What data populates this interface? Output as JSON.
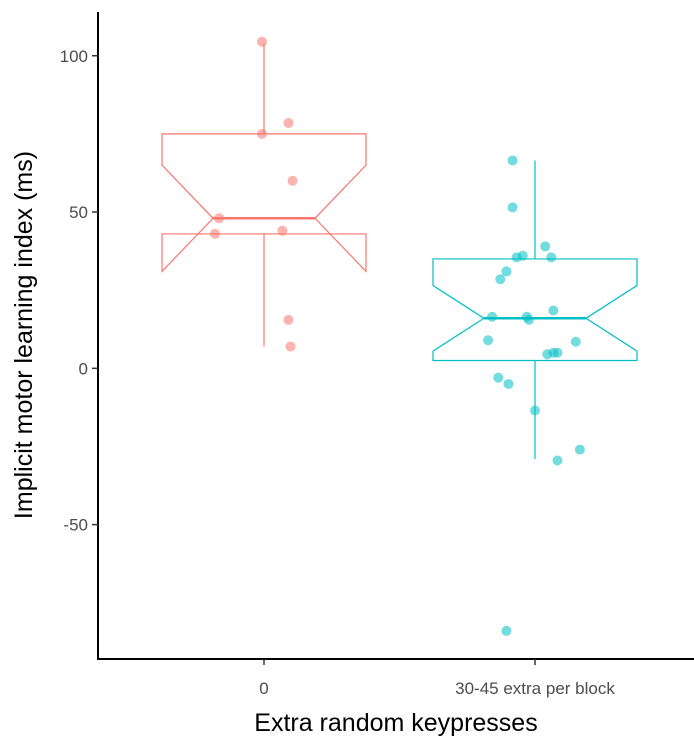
{
  "chart_data": {
    "type": "boxplot",
    "xlabel": "Extra random keypresses",
    "ylabel": "Implicit motor learning index (ms)",
    "ylim": [
      -93,
      114
    ],
    "y_ticks": [
      100,
      50,
      0,
      -50
    ],
    "y_tick_labels": [
      "100",
      "50",
      "0",
      "-50"
    ],
    "grid": false,
    "legend": "none",
    "notched": true,
    "categories": [
      "0",
      "30-45 extra per block"
    ],
    "groups": [
      {
        "category": "0",
        "color": "#F8766D",
        "whisker_low": 7,
        "q1": 43,
        "median": 48,
        "q3": 75,
        "whisker_high": 104,
        "notch_low": 31,
        "notch_high": 65,
        "points": [
          {
            "jitter": -0.01,
            "y": 104.5
          },
          {
            "jitter": -0.01,
            "y": 75
          },
          {
            "jitter": 0.12,
            "y": 78.5
          },
          {
            "jitter": 0.14,
            "y": 60
          },
          {
            "jitter": -0.22,
            "y": 48
          },
          {
            "jitter": -0.24,
            "y": 43
          },
          {
            "jitter": 0.09,
            "y": 44
          },
          {
            "jitter": 0.12,
            "y": 15.5
          },
          {
            "jitter": 0.13,
            "y": 7
          }
        ]
      },
      {
        "category": "30-45 extra per block",
        "color": "#00BFC4",
        "whisker_low": -29,
        "q1": 2.5,
        "median": 16,
        "q3": 35,
        "whisker_high": 66.5,
        "notch_low": 5.5,
        "notch_high": 26.5,
        "points": [
          {
            "jitter": -0.11,
            "y": 66.5
          },
          {
            "jitter": -0.11,
            "y": 51.5
          },
          {
            "jitter": 0.05,
            "y": 39
          },
          {
            "jitter": -0.09,
            "y": 35.5
          },
          {
            "jitter": -0.06,
            "y": 36
          },
          {
            "jitter": 0.08,
            "y": 35.5
          },
          {
            "jitter": -0.14,
            "y": 31
          },
          {
            "jitter": -0.17,
            "y": 28.5
          },
          {
            "jitter": 0.09,
            "y": 18.5
          },
          {
            "jitter": -0.21,
            "y": 16.5
          },
          {
            "jitter": -0.04,
            "y": 16.5
          },
          {
            "jitter": -0.03,
            "y": 15.5
          },
          {
            "jitter": -0.23,
            "y": 9
          },
          {
            "jitter": 0.06,
            "y": 4.5
          },
          {
            "jitter": 0.09,
            "y": 5
          },
          {
            "jitter": 0.11,
            "y": 5
          },
          {
            "jitter": 0.2,
            "y": 8.5
          },
          {
            "jitter": -0.18,
            "y": -3
          },
          {
            "jitter": -0.13,
            "y": -5
          },
          {
            "jitter": 0.0,
            "y": -13.5
          },
          {
            "jitter": 0.11,
            "y": -29.5
          },
          {
            "jitter": 0.22,
            "y": -26
          },
          {
            "jitter": -0.14,
            "y": -84
          }
        ]
      }
    ]
  }
}
